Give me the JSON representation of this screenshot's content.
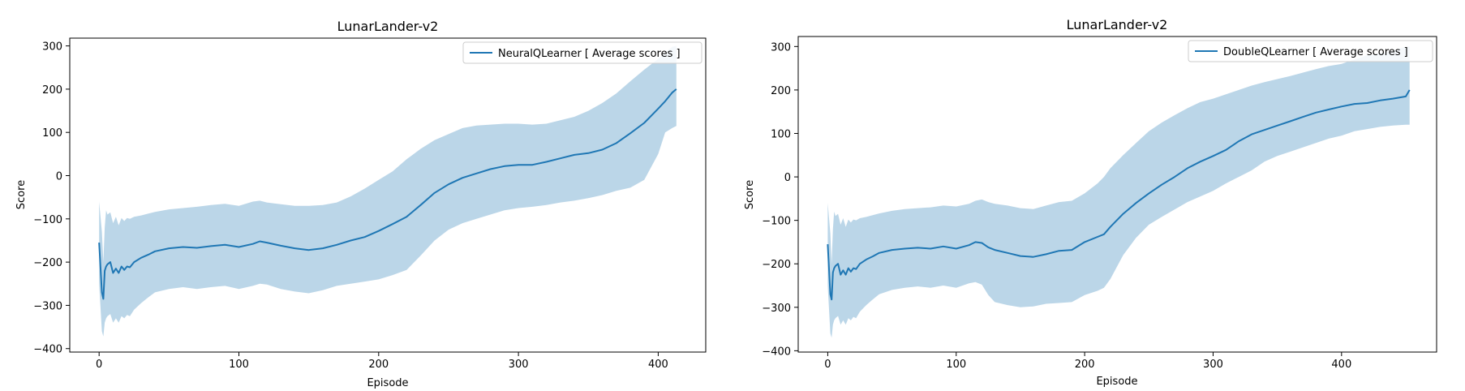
{
  "colors": {
    "line": "#1f77b4",
    "band": "#1f77b4",
    "axes": "#000000",
    "background": "#ffffff"
  },
  "chart_data": [
    {
      "type": "line",
      "title": "LunarLander-v2",
      "xlabel": "Episode",
      "ylabel": "Score",
      "xlim": [
        -21,
        434
      ],
      "ylim": [
        -408,
        318
      ],
      "xticks": [
        0,
        100,
        200,
        300,
        400
      ],
      "yticks": [
        -400,
        -300,
        -200,
        -100,
        0,
        100,
        200,
        300
      ],
      "grid": false,
      "legend_position": "top-right",
      "series": [
        {
          "name": "NeuralQLearner [ Average scores ]",
          "x": [
            0,
            2,
            3,
            4,
            5,
            6,
            8,
            10,
            12,
            14,
            16,
            18,
            20,
            22,
            25,
            30,
            35,
            40,
            50,
            60,
            70,
            80,
            90,
            100,
            110,
            115,
            120,
            130,
            140,
            150,
            160,
            170,
            180,
            190,
            200,
            210,
            220,
            230,
            240,
            250,
            260,
            270,
            280,
            290,
            300,
            310,
            320,
            330,
            340,
            350,
            360,
            370,
            380,
            390,
            400,
            405,
            410,
            413
          ],
          "y": [
            -155,
            -270,
            -285,
            -220,
            -210,
            -205,
            -200,
            -225,
            -215,
            -225,
            -210,
            -218,
            -210,
            -212,
            -200,
            -190,
            -183,
            -175,
            -168,
            -165,
            -167,
            -163,
            -160,
            -165,
            -158,
            -152,
            -155,
            -162,
            -168,
            -172,
            -168,
            -160,
            -150,
            -142,
            -128,
            -112,
            -95,
            -68,
            -40,
            -20,
            -5,
            5,
            15,
            22,
            25,
            25,
            32,
            40,
            48,
            52,
            60,
            75,
            98,
            122,
            155,
            172,
            192,
            200
          ],
          "upper": [
            -60,
            -130,
            -200,
            -120,
            -80,
            -90,
            -85,
            -110,
            -95,
            -115,
            -98,
            -105,
            -98,
            -100,
            -95,
            -92,
            -88,
            -84,
            -78,
            -75,
            -72,
            -68,
            -65,
            -70,
            -60,
            -58,
            -62,
            -66,
            -70,
            -70,
            -68,
            -62,
            -48,
            -30,
            -10,
            10,
            38,
            62,
            82,
            96,
            110,
            116,
            118,
            120,
            120,
            118,
            120,
            128,
            136,
            150,
            168,
            190,
            218,
            245,
            270,
            285,
            298,
            300
          ],
          "lower": [
            -250,
            -360,
            -372,
            -340,
            -330,
            -325,
            -320,
            -340,
            -330,
            -340,
            -325,
            -330,
            -322,
            -325,
            -310,
            -295,
            -282,
            -270,
            -262,
            -258,
            -262,
            -258,
            -255,
            -262,
            -255,
            -250,
            -252,
            -262,
            -268,
            -272,
            -265,
            -255,
            -250,
            -245,
            -240,
            -230,
            -218,
            -185,
            -150,
            -125,
            -110,
            -100,
            -90,
            -80,
            -75,
            -72,
            -68,
            -62,
            -58,
            -52,
            -45,
            -35,
            -28,
            -10,
            50,
            100,
            110,
            115
          ]
        }
      ]
    },
    {
      "type": "line",
      "title": "LunarLander-v2",
      "xlabel": "Episode",
      "ylabel": "Score",
      "xlim": [
        -23,
        474
      ],
      "ylim": [
        -403,
        323
      ],
      "xticks": [
        0,
        100,
        200,
        300,
        400
      ],
      "yticks": [
        -400,
        -300,
        -200,
        -100,
        0,
        100,
        200,
        300
      ],
      "grid": false,
      "legend_position": "top-right",
      "series": [
        {
          "name": "DoubleQLearner [ Average scores ]",
          "x": [
            0,
            2,
            3,
            4,
            5,
            6,
            8,
            10,
            12,
            14,
            16,
            18,
            20,
            22,
            25,
            30,
            35,
            40,
            50,
            60,
            70,
            80,
            90,
            100,
            110,
            115,
            120,
            125,
            130,
            140,
            150,
            160,
            170,
            180,
            190,
            200,
            210,
            215,
            220,
            230,
            240,
            250,
            260,
            270,
            280,
            290,
            300,
            310,
            320,
            330,
            340,
            350,
            360,
            370,
            380,
            390,
            400,
            410,
            420,
            430,
            440,
            450,
            453
          ],
          "y": [
            -155,
            -270,
            -282,
            -220,
            -210,
            -205,
            -200,
            -225,
            -215,
            -225,
            -210,
            -218,
            -210,
            -212,
            -200,
            -190,
            -183,
            -175,
            -168,
            -165,
            -163,
            -165,
            -160,
            -165,
            -157,
            -150,
            -152,
            -162,
            -168,
            -175,
            -182,
            -184,
            -178,
            -170,
            -168,
            -150,
            -138,
            -132,
            -115,
            -85,
            -60,
            -38,
            -18,
            0,
            20,
            35,
            48,
            62,
            82,
            98,
            108,
            118,
            128,
            138,
            148,
            155,
            162,
            168,
            170,
            176,
            180,
            185,
            200
          ],
          "upper": [
            -60,
            -130,
            -200,
            -120,
            -80,
            -90,
            -85,
            -110,
            -95,
            -115,
            -98,
            -105,
            -98,
            -100,
            -95,
            -92,
            -88,
            -84,
            -78,
            -74,
            -72,
            -70,
            -66,
            -68,
            -62,
            -55,
            -52,
            -58,
            -62,
            -66,
            -72,
            -74,
            -66,
            -58,
            -55,
            -38,
            -15,
            0,
            20,
            50,
            78,
            105,
            125,
            142,
            158,
            172,
            180,
            190,
            200,
            210,
            218,
            225,
            232,
            240,
            248,
            255,
            260,
            270,
            280,
            285,
            290,
            300,
            300
          ],
          "lower": [
            -250,
            -360,
            -370,
            -340,
            -330,
            -325,
            -320,
            -340,
            -330,
            -340,
            -325,
            -330,
            -322,
            -325,
            -310,
            -295,
            -282,
            -270,
            -260,
            -255,
            -252,
            -255,
            -250,
            -255,
            -245,
            -242,
            -248,
            -272,
            -288,
            -295,
            -300,
            -298,
            -292,
            -290,
            -288,
            -272,
            -262,
            -255,
            -235,
            -180,
            -140,
            -110,
            -92,
            -75,
            -58,
            -45,
            -32,
            -15,
            0,
            15,
            35,
            48,
            58,
            68,
            78,
            88,
            95,
            105,
            110,
            115,
            118,
            120,
            120
          ]
        }
      ]
    }
  ]
}
